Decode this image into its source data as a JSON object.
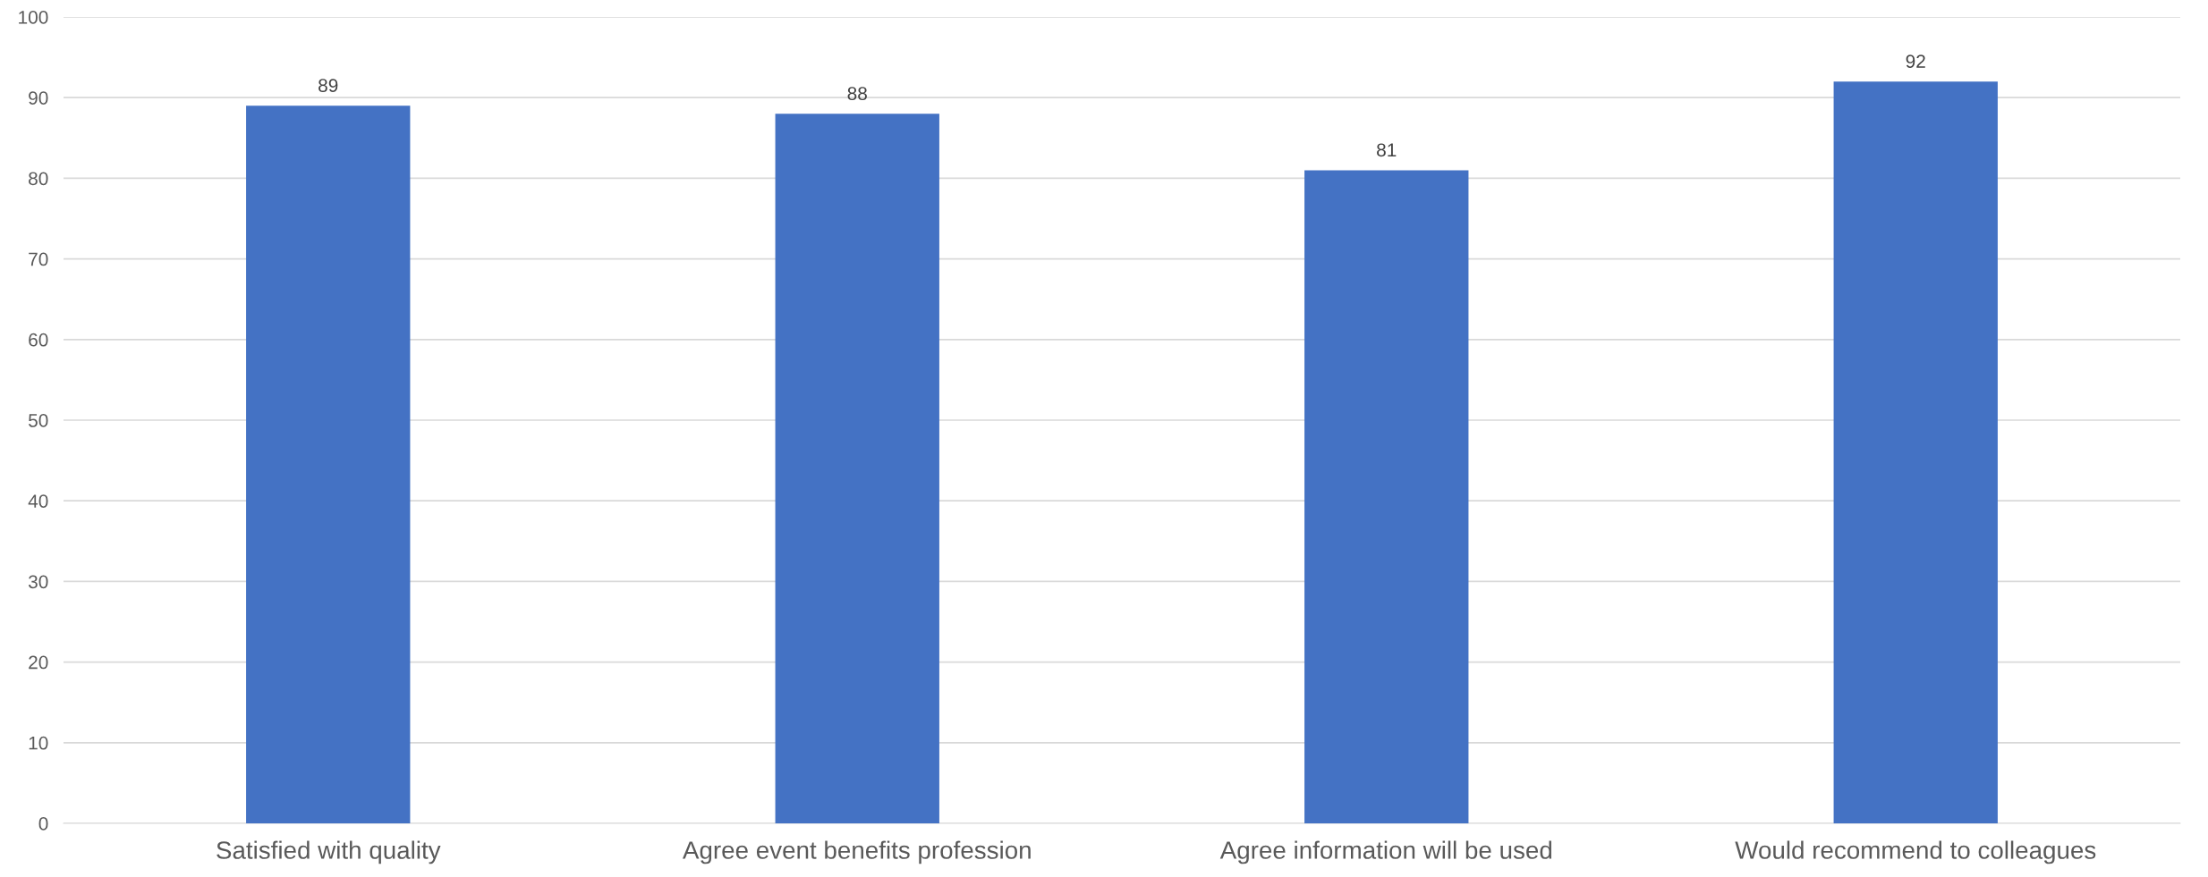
{
  "chart_data": {
    "type": "bar",
    "categories": [
      "Satisfied with quality",
      "Agree event benefits profession",
      "Agree information will be used",
      "Would recommend to colleagues"
    ],
    "values": [
      89,
      88,
      81,
      92
    ],
    "color": "#4472c4",
    "ylim": [
      0,
      100
    ],
    "yticks": [
      0,
      10,
      20,
      30,
      40,
      50,
      60,
      70,
      80,
      90,
      100
    ],
    "grid": "y",
    "data_labels": true,
    "legend": false
  }
}
